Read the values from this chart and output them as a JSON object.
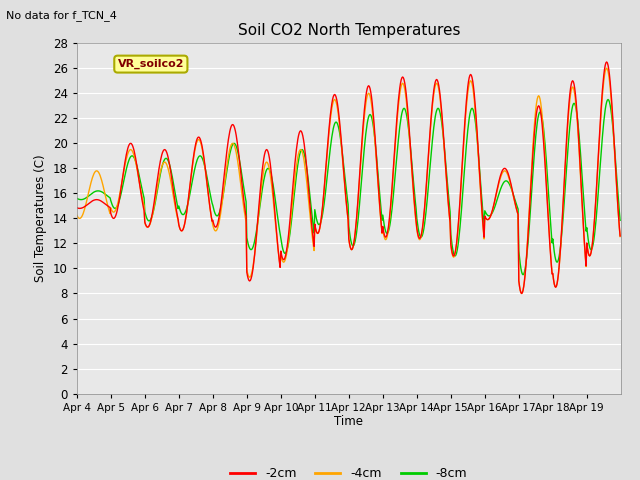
{
  "title": "Soil CO2 North Temperatures",
  "subtitle": "No data for f_TCN_4",
  "ylabel": "Soil Temperatures (C)",
  "xlabel": "Time",
  "legend_label": "VR_soilco2",
  "ylim": [
    0,
    28
  ],
  "yticks": [
    0,
    2,
    4,
    6,
    8,
    10,
    12,
    14,
    16,
    18,
    20,
    22,
    24,
    26,
    28
  ],
  "xtick_labels": [
    "Apr 4",
    "Apr 5",
    "Apr 6",
    "Apr 7",
    "Apr 8",
    "Apr 9",
    "Apr 10",
    "Apr 11",
    "Apr 12",
    "Apr 13",
    "Apr 14",
    "Apr 15",
    "Apr 16",
    "Apr 17",
    "Apr 18",
    "Apr 19"
  ],
  "series_colors": {
    "m2cm": "#ff0000",
    "m4cm": "#ffa500",
    "m8cm": "#00cc00"
  },
  "series_labels": [
    "-2cm",
    "-4cm",
    "-8cm"
  ],
  "background_color": "#e0e0e0",
  "plot_bg_color": "#e8e8e8",
  "grid_color": "#ffffff",
  "line_width": 1.0,
  "n_points_per_day": 48,
  "num_days": 16,
  "daily_min_2cm": [
    14.8,
    14.0,
    13.3,
    13.0,
    13.3,
    9.0,
    10.7,
    12.8,
    11.5,
    12.5,
    12.4,
    11.0,
    13.9,
    8.0,
    8.5,
    11.0
  ],
  "daily_max_2cm": [
    15.5,
    20.0,
    19.5,
    20.5,
    21.5,
    19.5,
    21.0,
    23.9,
    24.6,
    25.3,
    25.1,
    25.5,
    18.0,
    23.0,
    25.0,
    26.5
  ],
  "daily_min_4cm": [
    14.0,
    14.5,
    13.3,
    13.0,
    13.0,
    9.3,
    10.5,
    12.8,
    11.5,
    12.3,
    12.3,
    10.9,
    13.9,
    8.0,
    8.5,
    11.0
  ],
  "daily_max_4cm": [
    17.8,
    19.5,
    18.5,
    20.3,
    20.0,
    18.5,
    19.5,
    23.5,
    24.0,
    24.8,
    24.8,
    25.0,
    17.8,
    23.8,
    24.5,
    26.0
  ],
  "daily_min_8cm": [
    15.5,
    14.8,
    13.8,
    14.3,
    14.2,
    11.5,
    11.2,
    13.5,
    11.8,
    12.8,
    12.5,
    11.0,
    14.2,
    9.5,
    10.5,
    11.5
  ],
  "daily_max_8cm": [
    16.2,
    19.0,
    18.8,
    19.0,
    20.0,
    18.0,
    19.5,
    21.7,
    22.3,
    22.8,
    22.8,
    22.8,
    17.0,
    22.5,
    23.2,
    23.5
  ],
  "peak_hour_2cm": 14,
  "peak_hour_4cm": 14,
  "peak_hour_8cm": 15
}
